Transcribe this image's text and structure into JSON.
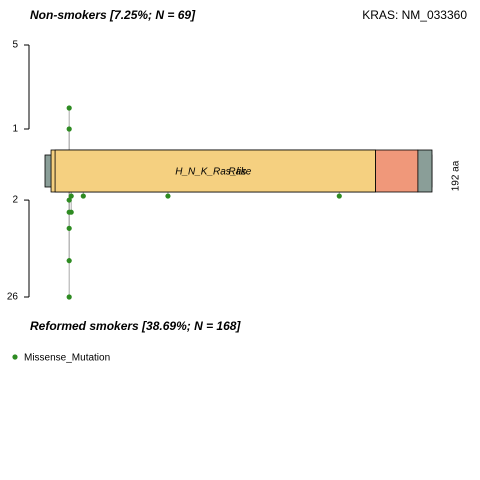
{
  "chart_data": {
    "type": "lollipop",
    "gene_title": "KRAS: NM_033360",
    "protein_length": 192,
    "length_label": "192 aa",
    "domains": [
      {
        "label": "H_N_K_Ras_like",
        "start": 3,
        "end": 164,
        "color": "#f5d080"
      },
      {
        "label": "Ras",
        "start": 5,
        "end": 164,
        "color": "#f5d080"
      },
      {
        "start": 164,
        "end": 185,
        "color": "#f0987a"
      },
      {
        "start": 185,
        "end": 192,
        "color": "#8a9e98"
      }
    ],
    "panels": [
      {
        "title": "Non-smokers [7.25%; N = 69]",
        "positions": [
          12,
          12
        ],
        "counts": [
          2,
          1
        ],
        "ylim": [
          0,
          5
        ],
        "yticks": [
          5,
          1
        ]
      },
      {
        "title": "Reformed smokers [38.69%; N = 168]",
        "positions": [
          12,
          12,
          12,
          12,
          12,
          13,
          13,
          19,
          61,
          146
        ],
        "counts": [
          2,
          5,
          9,
          17,
          26,
          1,
          5,
          1,
          1,
          1
        ],
        "ylim": [
          0,
          26
        ],
        "yticks": [
          2,
          26
        ]
      }
    ],
    "legend": [
      {
        "label": "Missense_Mutation",
        "color": "#2e8b22"
      }
    ]
  }
}
